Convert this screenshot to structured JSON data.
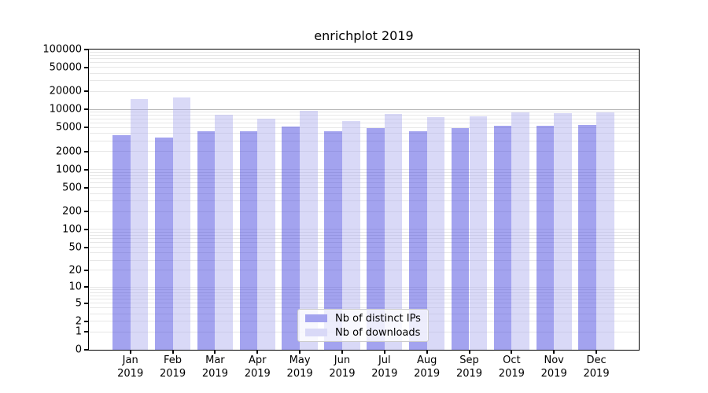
{
  "figure": {
    "title": "enrichplot 2019"
  },
  "chart_data": {
    "type": "bar",
    "title": "enrichplot 2019",
    "categories": [
      "Jan",
      "Feb",
      "Mar",
      "Apr",
      "May",
      "Jun",
      "Jul",
      "Aug",
      "Sep",
      "Oct",
      "Nov",
      "Dec"
    ],
    "x_tick_second_line": "2019",
    "series": [
      {
        "name": "Nb of distinct IPs",
        "color": "#a3a3ef",
        "bar_fill": "rgba(51,51,219,0.45)",
        "values": [
          3700,
          3400,
          4300,
          4300,
          5200,
          4300,
          4900,
          4400,
          4900,
          5300,
          5300,
          5600
        ]
      },
      {
        "name": "Nb of downloads",
        "color": "#d9d9f7",
        "bar_fill": "rgba(171,171,237,0.45)",
        "values": [
          14900,
          15800,
          8100,
          7000,
          9400,
          6500,
          8500,
          7400,
          7700,
          9000,
          8800,
          9000
        ]
      }
    ],
    "y_scale": "log1p",
    "ylim": [
      0,
      100000
    ],
    "y_ticks": [
      0,
      1,
      2,
      5,
      10,
      20,
      50,
      100,
      200,
      500,
      1000,
      2000,
      5000,
      10000,
      20000,
      50000,
      100000
    ],
    "grid": true,
    "grid_color": "#e7e7e7",
    "grid_emphasis_value": 10000,
    "grid_emphasis_color": "#b5b5b5",
    "legend_position": "lower center",
    "axis_color": "#000000"
  }
}
